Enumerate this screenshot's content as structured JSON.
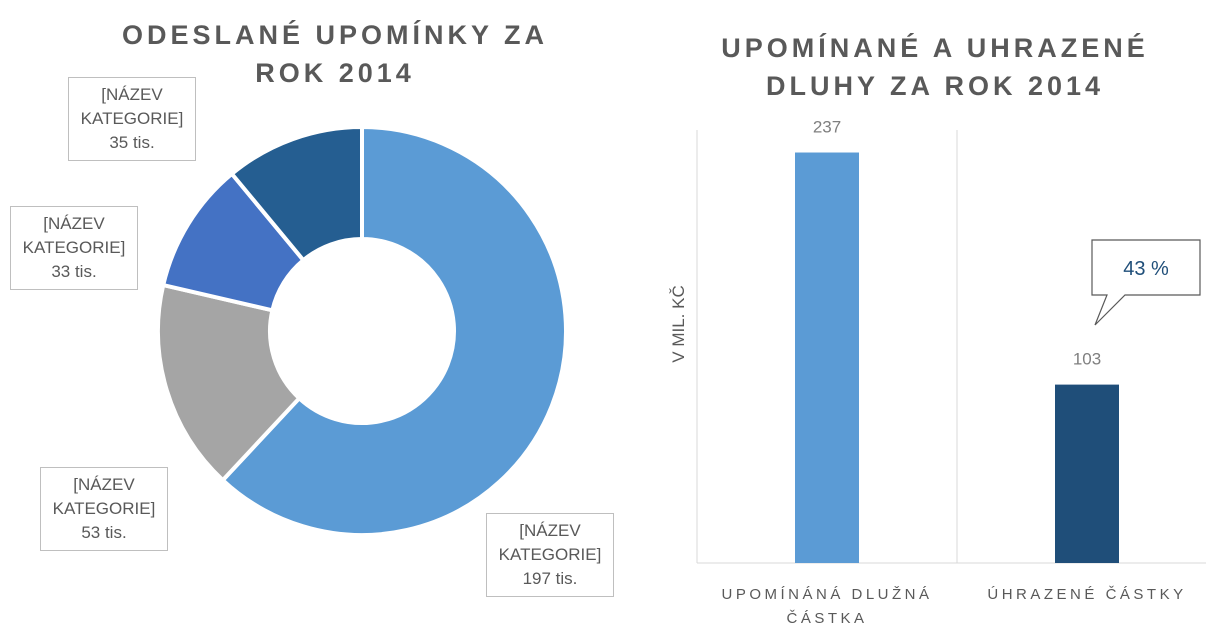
{
  "chart_data": [
    {
      "type": "donut",
      "title": "ODESLANÉ UPOMÍNKY ZA ROK 2014",
      "categories": [
        "[NÁZEV KATEGORIE]",
        "[NÁZEV KATEGORIE]",
        "[NÁZEV KATEGORIE]",
        "[NÁZEV KATEGORIE]"
      ],
      "values": [
        197,
        53,
        33,
        35
      ],
      "value_labels": [
        "197 tis.",
        "53 tis.",
        "33 tis.",
        "35 tis."
      ],
      "colors": [
        "#5b9bd5",
        "#a5a5a5",
        "#4472c4",
        "#255e91"
      ]
    },
    {
      "type": "bar",
      "title": "UPOMÍNANÉ A UHRAZENÉ DLUHY ZA ROK 2014",
      "y_label": "V MIL. KČ",
      "categories": [
        "UPOMÍNÁNÁ DLUŽNÁ ČÁSTKA",
        "ÚHRAZENÉ ČÁSTKY"
      ],
      "values": [
        237,
        103
      ],
      "colors": [
        "#5b9bd5",
        "#1f4e79"
      ],
      "ylim": [
        0,
        250
      ],
      "annotation": "43 %"
    }
  ]
}
